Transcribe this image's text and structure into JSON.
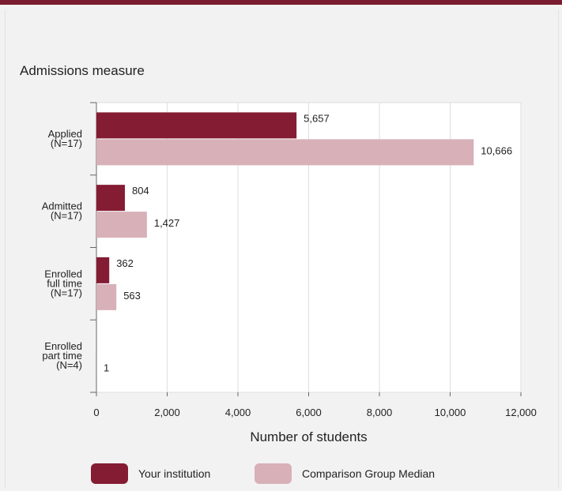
{
  "chart_data": {
    "type": "bar",
    "orientation": "horizontal",
    "title": "Admissions measure",
    "xlabel": "Number of students",
    "xlim": [
      0,
      12000
    ],
    "xticks": [
      0,
      2000,
      4000,
      6000,
      8000,
      10000,
      12000
    ],
    "xtick_labels": [
      "0",
      "2,000",
      "4,000",
      "6,000",
      "8,000",
      "10,000",
      "12,000"
    ],
    "grid": "vertical",
    "legend_position": "bottom",
    "categories": [
      [
        "Applied",
        "(N=17)"
      ],
      [
        "Admitted",
        "(N=17)"
      ],
      [
        "Enrolled",
        "full time",
        "(N=17)"
      ],
      [
        "Enrolled",
        "part time",
        "(N=4)"
      ]
    ],
    "series": [
      {
        "name": "Your institution",
        "color": "#841c33",
        "values": [
          5657,
          804,
          362,
          null
        ],
        "labels": [
          "5,657",
          "804",
          "362",
          ""
        ]
      },
      {
        "name": "Comparison Group Median",
        "color": "#d8b0b8",
        "values": [
          10666,
          1427,
          563,
          1
        ],
        "labels": [
          "10,666",
          "1,427",
          "563",
          "1"
        ]
      }
    ]
  }
}
